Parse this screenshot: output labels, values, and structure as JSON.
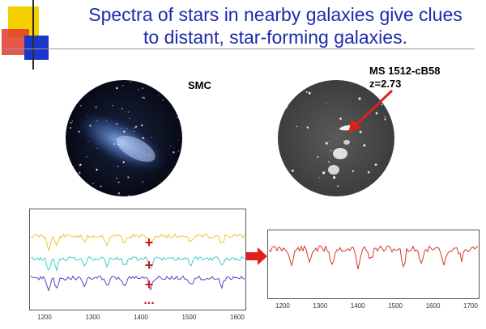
{
  "title": {
    "line1": "Spectra of stars in nearby galaxies give clues",
    "line2": "to distant, star-forming galaxies."
  },
  "images": {
    "smc": {
      "label": "SMC"
    },
    "ms": {
      "label_line1": "MS 1512-cB58",
      "label_line2": "z=2.73"
    }
  },
  "spectra": {
    "left": {
      "x_ticks": [
        "1200",
        "1300",
        "1400",
        "1500",
        "1600"
      ],
      "operators": [
        "+",
        "+",
        "+",
        "..."
      ],
      "series_colors": [
        "#e8c832",
        "#3fd0c0",
        "#5a44c8"
      ]
    },
    "right": {
      "x_ticks": [
        "1200",
        "1300",
        "1400",
        "1500",
        "1600",
        "1700"
      ],
      "series_colors": [
        "#d23a2a"
      ]
    }
  },
  "colors": {
    "title": "#1f2bb0",
    "arrow": "#e02020",
    "operator": "#c81e1e"
  }
}
